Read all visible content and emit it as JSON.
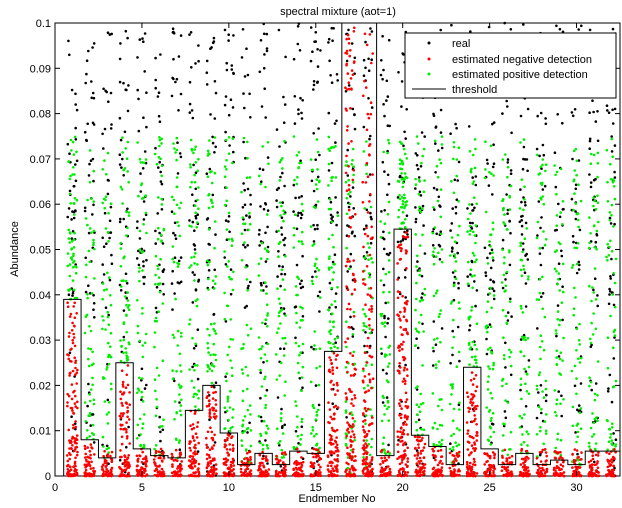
{
  "chart_data": {
    "type": "scatter",
    "title": "spectral mixture (aot=1)",
    "xlabel": "Endmember No",
    "ylabel": "Abundance",
    "xlim": [
      0,
      32.5
    ],
    "ylim": [
      0,
      0.1
    ],
    "xticks": [
      0,
      5,
      10,
      15,
      20,
      25,
      30
    ],
    "yticks": [
      0,
      0.01,
      0.02,
      0.03,
      0.04,
      0.05,
      0.06,
      0.07,
      0.08,
      0.09,
      0.1
    ],
    "grid": false,
    "legend_position": "top-right",
    "colors": {
      "real": "#000000",
      "negative": "#ff0000",
      "positive": "#00ee00",
      "threshold": "#000000"
    },
    "series": [
      {
        "name": "real",
        "marker": "dot"
      },
      {
        "name": "estimated negative detection",
        "marker": "dot"
      },
      {
        "name": "estimated positive detection",
        "marker": "dot"
      },
      {
        "name": "threshold",
        "marker": "line"
      }
    ],
    "threshold": {
      "endmembers": [
        1,
        2,
        3,
        4,
        5,
        6,
        7,
        8,
        9,
        10,
        11,
        12,
        13,
        14,
        15,
        16,
        17,
        18,
        19,
        20,
        21,
        22,
        23,
        24,
        25,
        26,
        27,
        28,
        29,
        30,
        31,
        32
      ],
      "values": [
        0.039,
        0.008,
        0.004,
        0.025,
        0.006,
        0.0045,
        0.004,
        0.0145,
        0.02,
        0.0095,
        0.0025,
        0.005,
        0.0025,
        0.0055,
        0.005,
        0.0275,
        0.1,
        0.1,
        0.0045,
        0.0545,
        0.009,
        0.0065,
        0.0025,
        0.024,
        0.006,
        0.0025,
        0.005,
        0.0025,
        0.0035,
        0.0025,
        0.0055,
        0.0055
      ]
    }
  }
}
